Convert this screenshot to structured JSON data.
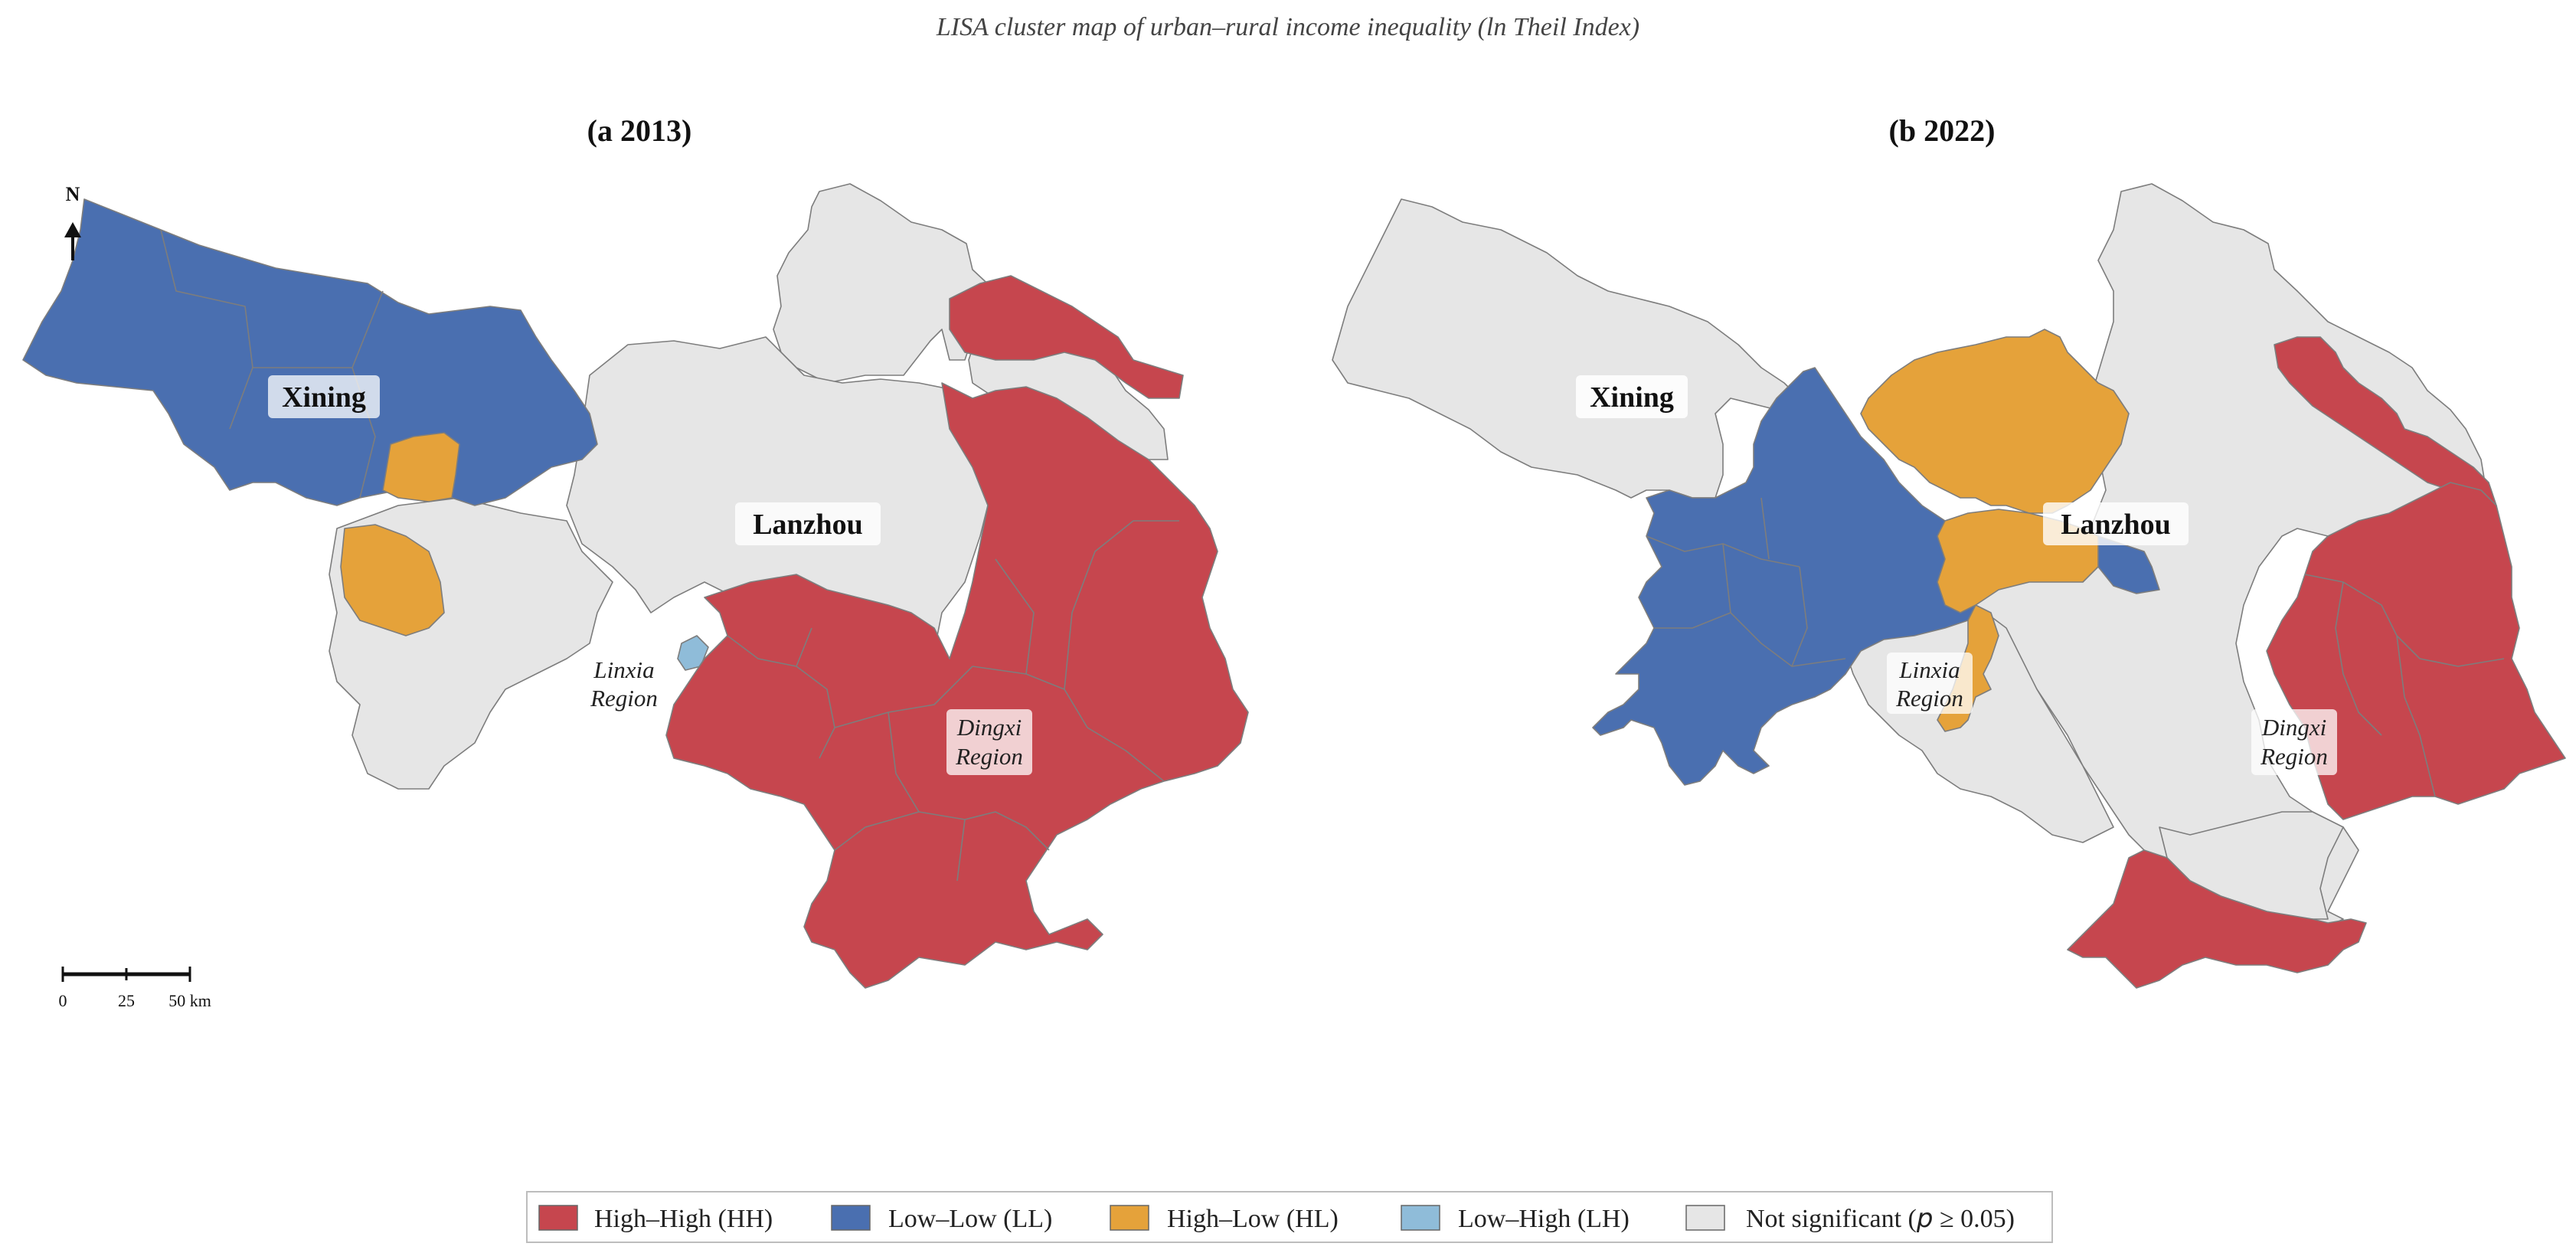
{
  "title": "LISA cluster map of urban–rural income inequality (ln Theil Index)",
  "colors": {
    "HH": "#c6464e",
    "LL": "#4a6fb0",
    "HL": "#e5a23a",
    "LH": "#8fbcd9",
    "NS": "#e6e6e6"
  },
  "panels": [
    {
      "title": "(a  2013)",
      "labels": {
        "xining": "Xining",
        "lanzhou": "Lanzhou",
        "linxia_line1": "Linxia",
        "linxia_line2": "Region",
        "dingxi_line1": "Dingxi",
        "dingxi_line2": "Region"
      }
    },
    {
      "title": "(b  2022)",
      "labels": {
        "xining": "Xining",
        "lanzhou": "Lanzhou",
        "linxia_line1": "Linxia",
        "linxia_line2": "Region",
        "dingxi_line1": "Dingxi",
        "dingxi_line2": "Region"
      }
    }
  ],
  "north_arrow": "N",
  "scale_bar": {
    "ticks": [
      "0",
      "25",
      "50 km"
    ]
  },
  "legend": [
    {
      "key": "HH",
      "label": "High–High (HH)"
    },
    {
      "key": "LL",
      "label": "Low–Low (LL)"
    },
    {
      "key": "HL",
      "label": "High–Low (HL)"
    },
    {
      "key": "LH",
      "label": "Low–High (LH)"
    },
    {
      "key": "NS",
      "label_prefix": "Not significant (",
      "label_italic": "p",
      "label_suffix": " ≥ 0.05)"
    }
  ]
}
